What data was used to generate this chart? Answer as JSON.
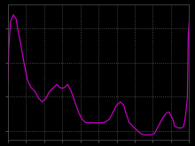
{
  "background_color": "#000000",
  "line_color": "#cc00cc",
  "grid_color": "#666666",
  "figsize": [
    2.2,
    1.65
  ],
  "dpi": 100,
  "xlim": [
    0,
    100
  ],
  "ylim": [
    3.5,
    23.0
  ],
  "x_grid_count": 10,
  "y_grid_count": 4,
  "x_pts": [
    0,
    0.5,
    1.5,
    3,
    4.5,
    5.5,
    7,
    9,
    11,
    13,
    15,
    17,
    19,
    21,
    23,
    25,
    27,
    29,
    31,
    33,
    35,
    37,
    39,
    41,
    43,
    45,
    47,
    50,
    53,
    56,
    58,
    60,
    62,
    64,
    65,
    67,
    69,
    71,
    73,
    75,
    77,
    79,
    81,
    83,
    85,
    87,
    88,
    89,
    90,
    91,
    92,
    94,
    96,
    97,
    98,
    99,
    99.5,
    100
  ],
  "y_pts": [
    11.5,
    16.5,
    20.5,
    21.5,
    21.0,
    19.5,
    17.5,
    14.5,
    12.0,
    11.0,
    10.5,
    9.5,
    9.0,
    9.5,
    10.5,
    11.0,
    11.5,
    11.0,
    11.0,
    11.5,
    10.5,
    9.0,
    7.5,
    6.5,
    6.0,
    6.0,
    6.0,
    6.0,
    6.0,
    6.5,
    7.5,
    8.5,
    9.0,
    8.5,
    7.5,
    6.0,
    5.5,
    5.0,
    4.5,
    4.25,
    4.25,
    4.25,
    4.5,
    5.5,
    6.5,
    7.25,
    7.5,
    7.5,
    7.0,
    6.5,
    5.5,
    5.25,
    5.25,
    5.5,
    7.0,
    9.5,
    18.5,
    20.5
  ],
  "spine_color": "#555555",
  "tick_color": "#888888"
}
